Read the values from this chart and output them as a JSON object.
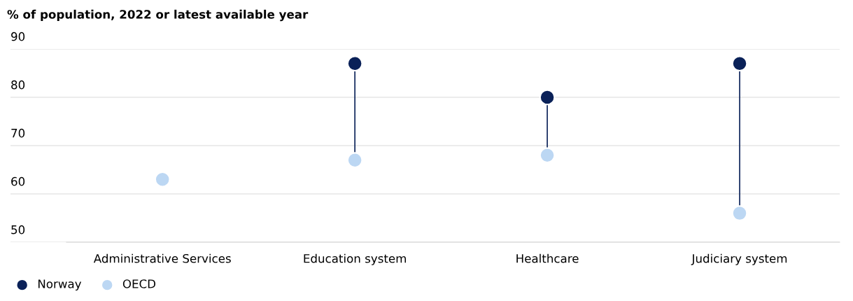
{
  "chart_data": {
    "type": "scatter",
    "title": "% of population, 2022 or latest available year",
    "categories": [
      "Administrative Services",
      "Education system",
      "Healthcare",
      "Judiciary system"
    ],
    "series": [
      {
        "name": "Norway",
        "color": "#0a2158",
        "values": [
          null,
          87,
          80,
          87
        ]
      },
      {
        "name": "OECD",
        "color": "#bcd7f3",
        "values": [
          63,
          67,
          68,
          56
        ]
      }
    ],
    "ylim": [
      50,
      90
    ],
    "yticks": [
      50,
      60,
      70,
      80,
      90
    ],
    "grid": "y",
    "legend": "bottom left",
    "marker": "circle"
  }
}
